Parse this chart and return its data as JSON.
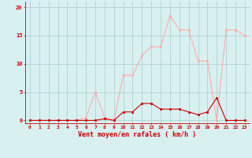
{
  "x": [
    0,
    1,
    2,
    3,
    4,
    5,
    6,
    7,
    8,
    9,
    10,
    11,
    12,
    13,
    14,
    15,
    16,
    17,
    18,
    19,
    20,
    21,
    22,
    23
  ],
  "rafales": [
    0,
    0,
    0,
    0,
    0,
    0,
    0.5,
    5,
    0.5,
    0,
    8,
    8,
    11.5,
    13,
    13,
    18.5,
    16,
    16,
    10.5,
    10.5,
    0,
    16,
    16,
    15
  ],
  "moyen": [
    0,
    0,
    0,
    0,
    0,
    0,
    0,
    0,
    0.3,
    0,
    1.5,
    1.5,
    3,
    3,
    2,
    2,
    2,
    1.5,
    1,
    1.5,
    4,
    0,
    0,
    0
  ],
  "rafales_color": "#ffaaaa",
  "moyen_color": "#cc0000",
  "bg_color": "#d8f0f0",
  "grid_color": "#aacccc",
  "xlabel": "Vent moyen/en rafales ( km/h )",
  "yticks": [
    0,
    5,
    10,
    15,
    20
  ],
  "ylim": [
    -0.5,
    21
  ],
  "xlim": [
    -0.5,
    23.5
  ],
  "figsize": [
    3.2,
    2.0
  ],
  "dpi": 100
}
